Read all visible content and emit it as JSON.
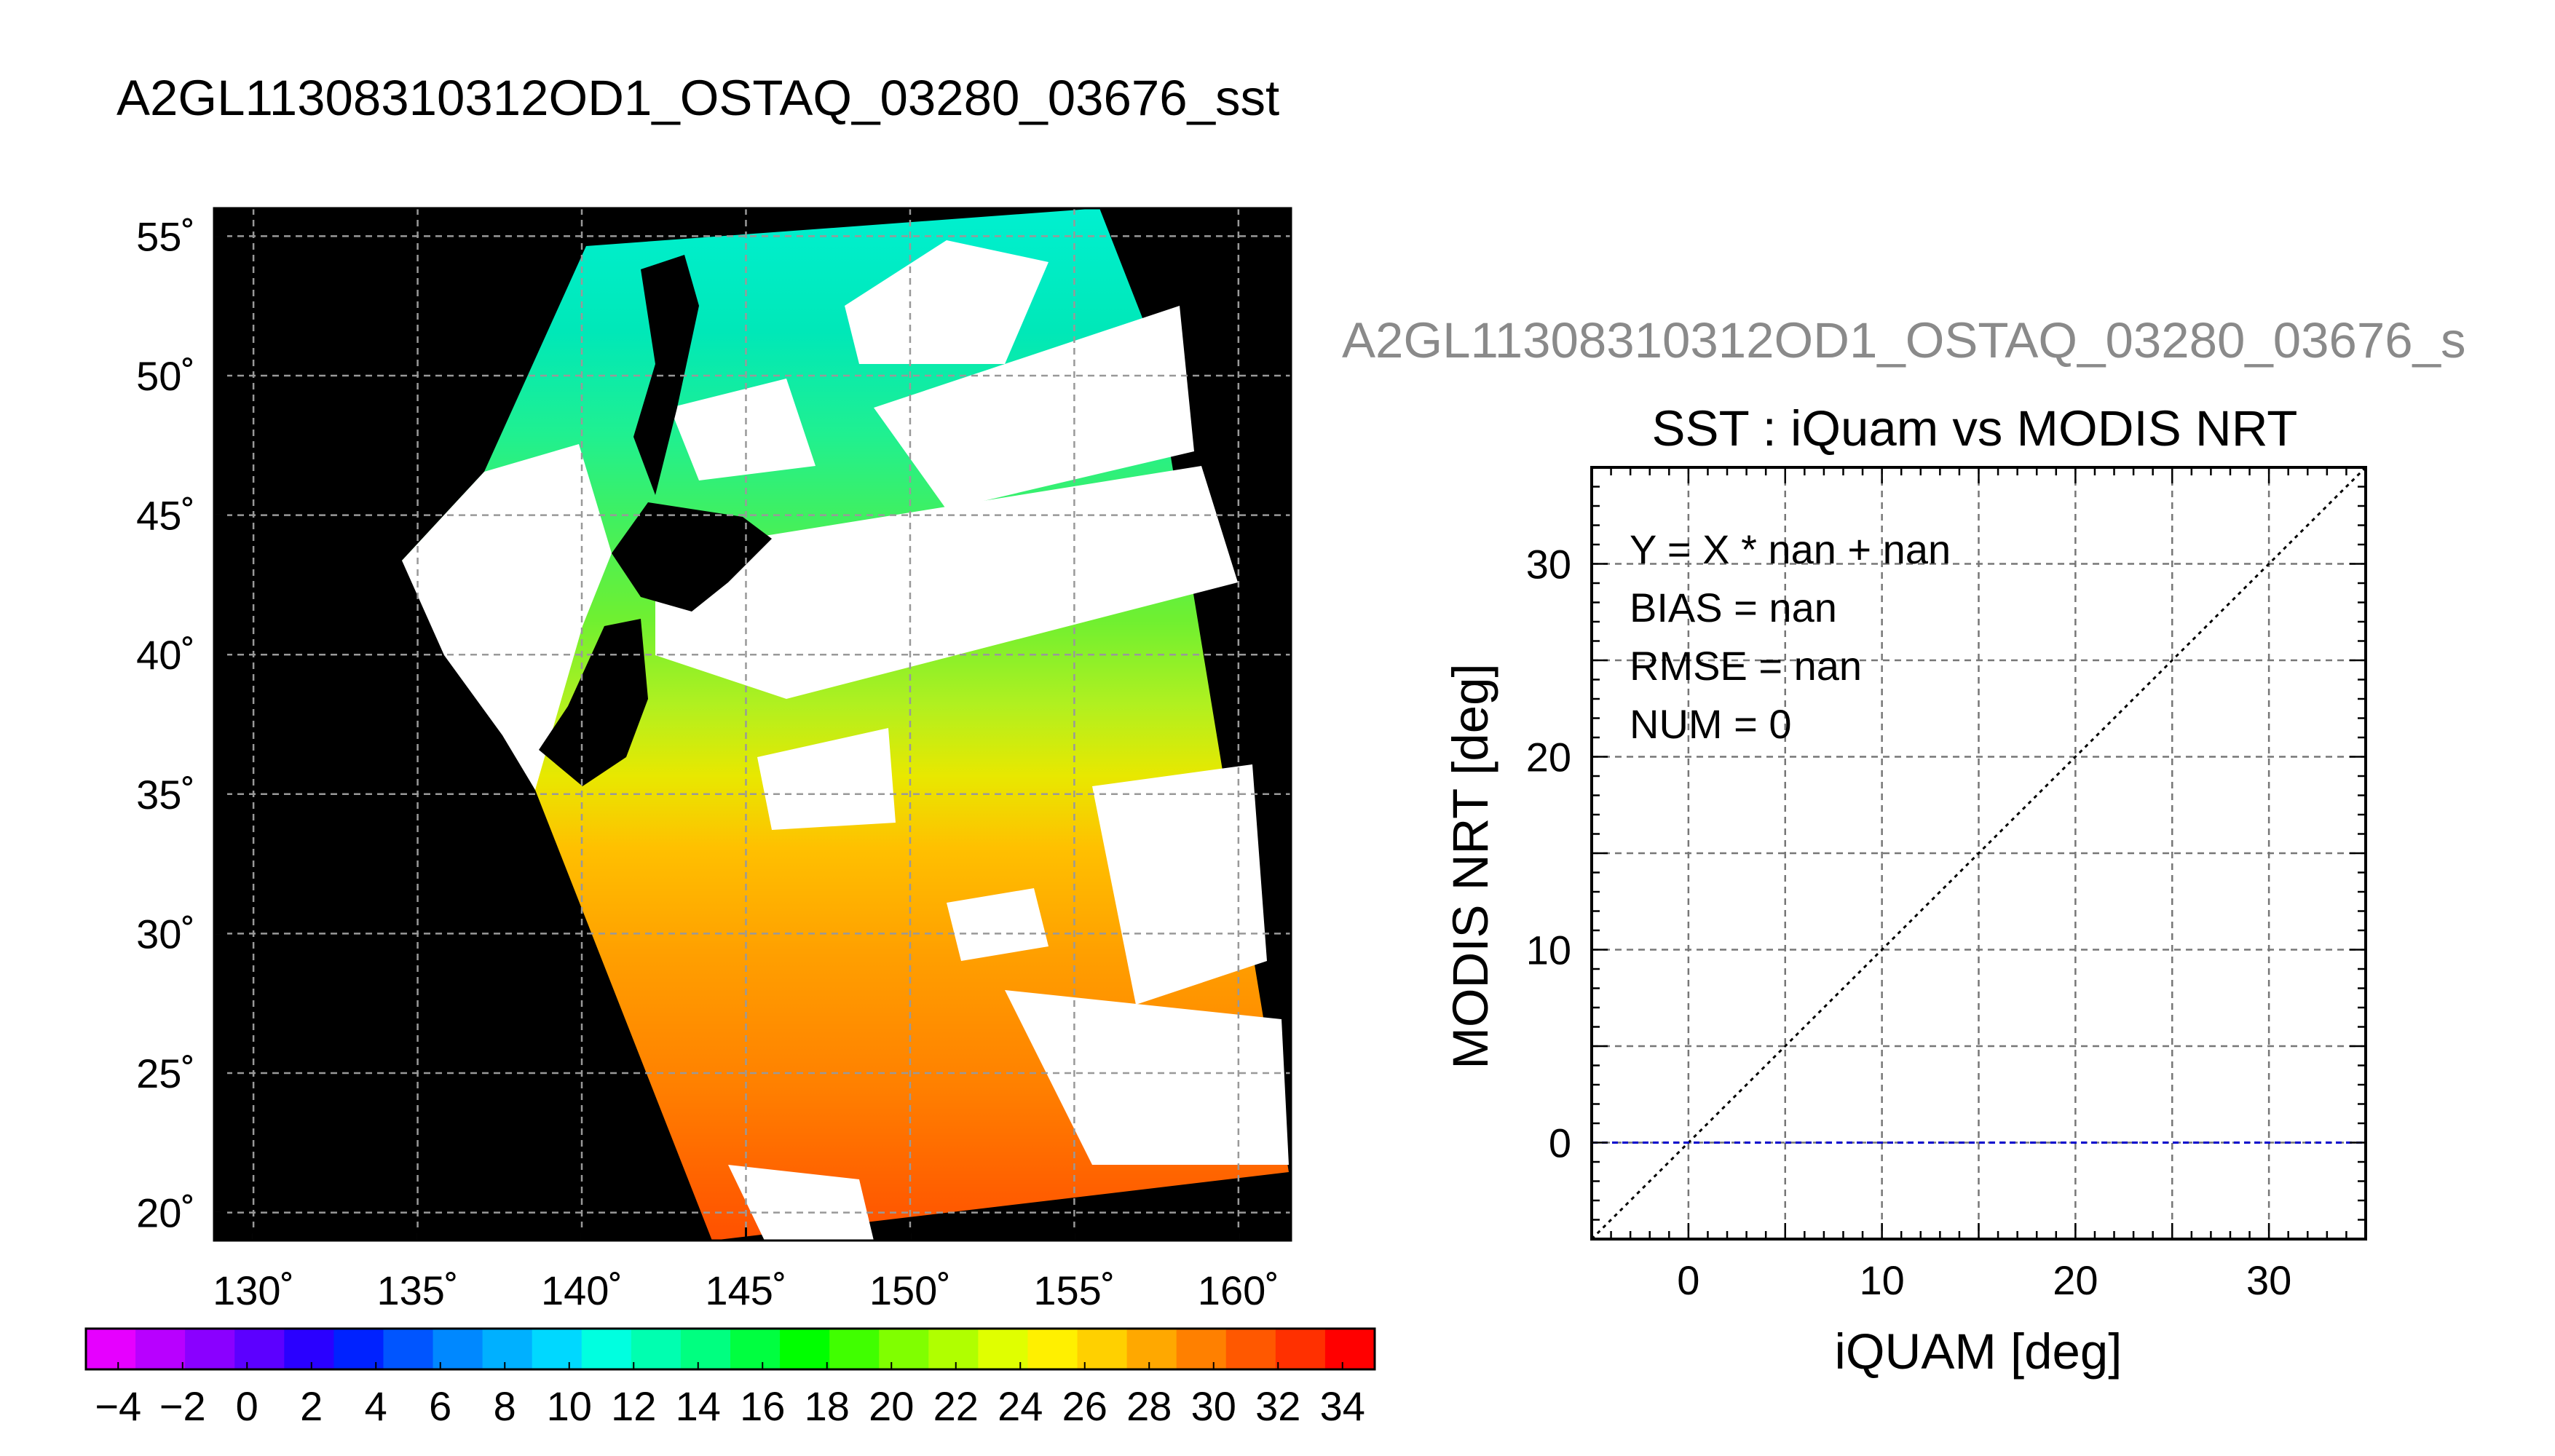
{
  "main_title": "A2GL11308310312OD1_OSTAQ_03280_03676_sst",
  "right_header": "A2GL11308310312OD1_OSTAQ_03280_03676_s",
  "map": {
    "lat_labels": [
      "55˚",
      "50˚",
      "45˚",
      "40˚",
      "35˚",
      "30˚",
      "25˚",
      "20˚"
    ],
    "lon_labels": [
      "130˚",
      "135˚",
      "140˚",
      "145˚",
      "150˚",
      "155˚",
      "160˚"
    ],
    "lat_values": [
      55,
      50,
      45,
      40,
      35,
      30,
      25,
      20
    ],
    "lon_values": [
      130,
      135,
      140,
      145,
      150,
      155,
      160
    ],
    "lat_range": [
      19,
      56
    ],
    "lon_range": [
      128.8,
      161.6
    ],
    "land_color": "#000000",
    "cloud_color": "#ffffff"
  },
  "colorbar": {
    "min": -5,
    "max": 35,
    "tick_labels": [
      "−4",
      "−2",
      "0",
      "2",
      "4",
      "6",
      "8",
      "10",
      "12",
      "14",
      "16",
      "18",
      "20",
      "22",
      "24",
      "26",
      "28",
      "30",
      "32",
      "34"
    ],
    "tick_values": [
      -4,
      -2,
      0,
      2,
      4,
      6,
      8,
      10,
      12,
      14,
      16,
      18,
      20,
      22,
      24,
      26,
      28,
      30,
      32,
      34
    ],
    "colors": [
      "#e600ff",
      "#b800ff",
      "#8a00ff",
      "#5c00ff",
      "#2a00ff",
      "#0022ff",
      "#0055ff",
      "#0088ff",
      "#00b0ff",
      "#00d8ff",
      "#00ffe0",
      "#00ffb0",
      "#00ff80",
      "#00ff40",
      "#00ff00",
      "#40ff00",
      "#80ff00",
      "#b0ff00",
      "#e0ff00",
      "#fff000",
      "#ffd000",
      "#ffa800",
      "#ff8000",
      "#ff5800",
      "#ff3000",
      "#ff0000"
    ]
  },
  "chart_data": {
    "type": "scatter",
    "title": "SST : iQuam vs MODIS NRT",
    "xlabel": "iQUAM [deg]",
    "ylabel": "MODIS NRT [deg]",
    "xlim": [
      -5,
      35
    ],
    "ylim": [
      -5,
      35
    ],
    "x_ticks": [
      0,
      10,
      20,
      30
    ],
    "y_ticks": [
      0,
      10,
      20,
      30
    ],
    "x_tick_labels": [
      "0",
      "10",
      "20",
      "30"
    ],
    "y_tick_labels": [
      "0",
      "10",
      "20",
      "30"
    ],
    "grid": true,
    "grid_step": 5,
    "points": [],
    "reference_line": {
      "slope": 1,
      "intercept": 0,
      "style": "dotted",
      "color": "#000000"
    },
    "zero_line": {
      "y": 0,
      "style": "dashed",
      "color": "#0000cc"
    },
    "annotations": [
      "Y = X * nan + nan",
      "BIAS = nan",
      "RMSE = nan",
      "NUM = 0"
    ]
  }
}
